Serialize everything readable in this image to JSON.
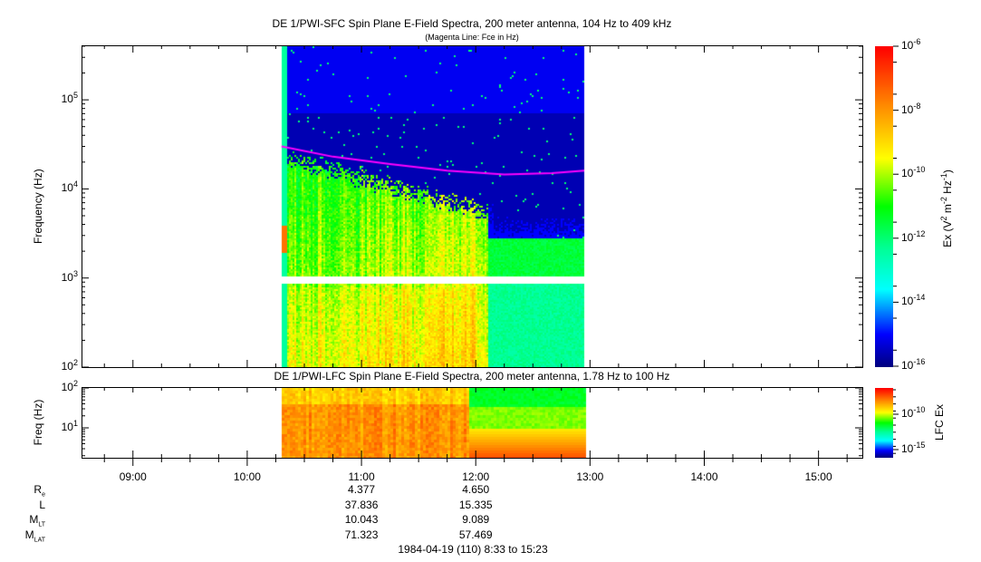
{
  "chart_data": [
    {
      "type": "heatmap",
      "title": "DE 1/PWI-SFC  Spin Plane E-Field Spectra, 200 meter antenna, 104 Hz to 409 kHz",
      "subtitle": "(Magenta Line: Fce in Hz)",
      "ylabel": "Frequency (Hz)",
      "yscale": "log",
      "ylim": [
        100,
        409000
      ],
      "yticks": [
        {
          "base": "10",
          "exp": "2",
          "value": 100
        },
        {
          "base": "10",
          "exp": "3",
          "value": 1000
        },
        {
          "base": "10",
          "exp": "4",
          "value": 10000
        },
        {
          "base": "10",
          "exp": "5",
          "value": 100000
        }
      ],
      "xlim": [
        "08:33",
        "15:23"
      ],
      "data_time_range": [
        "10:18",
        "12:57"
      ],
      "colorbar": {
        "label": "Ex (V<sup>2</sup> m<sup>-2</sup> Hz<sup>-1</sup>)",
        "label_parts": [
          "Ex (V",
          "2",
          " m",
          "-2",
          " Hz",
          "-1",
          ")"
        ],
        "scale": "log",
        "range": [
          1e-16,
          1e-06
        ],
        "ticks": [
          {
            "base": "10",
            "exp": "-6"
          },
          {
            "base": "10",
            "exp": "-8"
          },
          {
            "base": "10",
            "exp": "-10"
          },
          {
            "base": "10",
            "exp": "-12"
          },
          {
            "base": "10",
            "exp": "-14"
          },
          {
            "base": "10",
            "exp": "-16"
          }
        ]
      },
      "fce_line": {
        "color": "#ff00ff",
        "points": [
          [
            "10:18",
            30000
          ],
          [
            "10:45",
            23000
          ],
          [
            "11:15",
            19000
          ],
          [
            "11:45",
            16000
          ],
          [
            "12:15",
            14500
          ],
          [
            "12:40",
            15000
          ],
          [
            "12:57",
            16000
          ]
        ]
      }
    },
    {
      "type": "heatmap",
      "title": "DE 1/PWI-LFC  Spin Plane E-Field Spectra, 200 meter antenna, 1.78 Hz to 100 Hz",
      "ylabel": "Freq (Hz)",
      "yscale": "log",
      "ylim": [
        1.78,
        100
      ],
      "yticks": [
        {
          "base": "10",
          "exp": "2",
          "value": 100
        },
        {
          "base": "10",
          "exp": "1",
          "value": 10
        }
      ],
      "colorbar": {
        "label": "LFC Ex",
        "scale": "log",
        "range": [
          1e-16,
          1e-06
        ],
        "ticks": [
          {
            "base": "10",
            "exp": "-10"
          },
          {
            "base": "10",
            "exp": "-15"
          }
        ]
      },
      "data_time_range": [
        "10:18",
        "12:57"
      ]
    }
  ],
  "xaxis": {
    "ticks": [
      "09:00",
      "10:00",
      "11:00",
      "12:00",
      "13:00",
      "14:00",
      "15:00"
    ]
  },
  "orbit": {
    "labels": [
      {
        "main": "R",
        "sub": "e"
      },
      {
        "main": "L",
        "sub": ""
      },
      {
        "main": "M",
        "sub": "LT"
      },
      {
        "main": "M",
        "sub": "LAT"
      }
    ],
    "columns": [
      {
        "time": "11:00",
        "values": [
          "4.377",
          "37.836",
          "10.043",
          "71.323"
        ]
      },
      {
        "time": "12:00",
        "values": [
          "4.650",
          "15.335",
          "9.089",
          "57.469"
        ]
      }
    ],
    "date_range": "1984-04-19 (110) 8:33 to 15:23"
  },
  "colors": {
    "fce_line": "#ff00ff"
  }
}
